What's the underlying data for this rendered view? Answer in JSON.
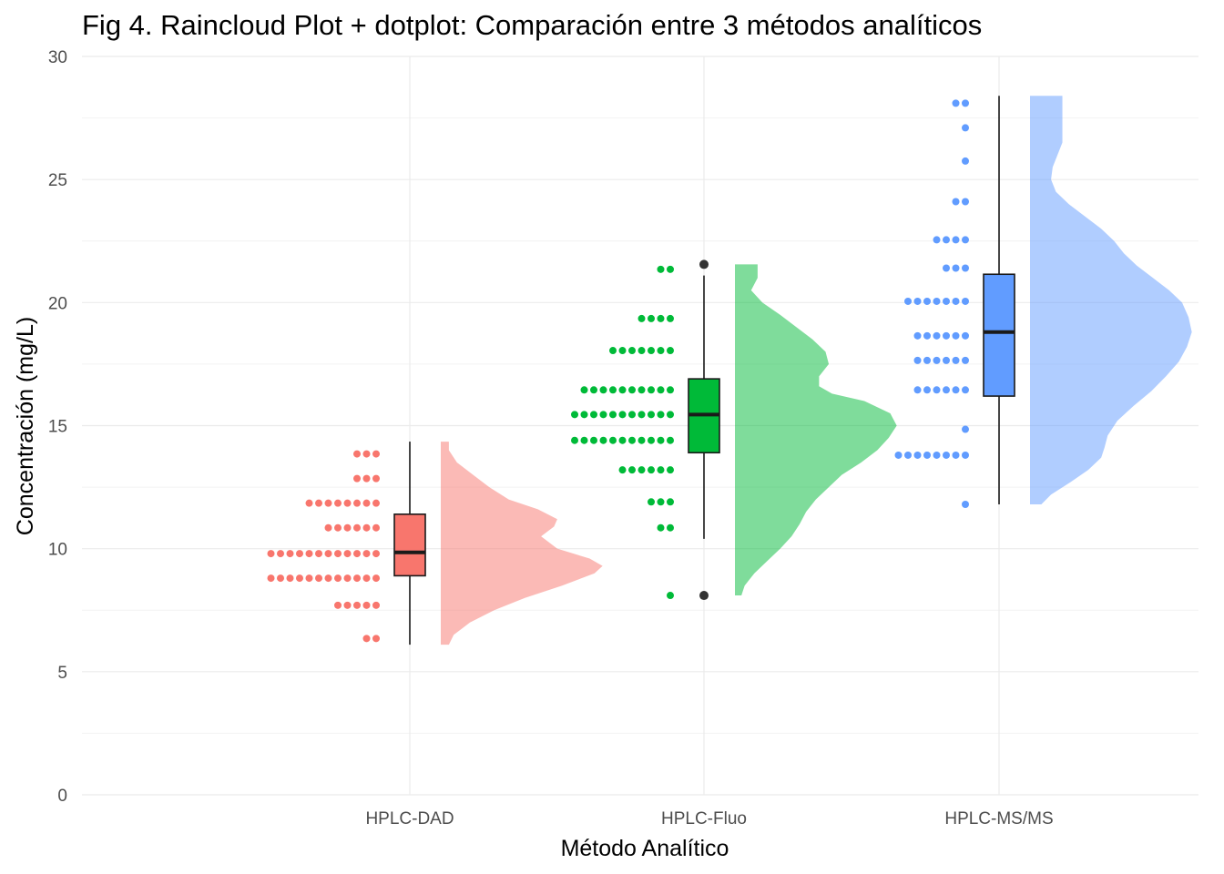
{
  "chart_data": {
    "type": "raincloud",
    "title": "Fig 4. Raincloud Plot + dotplot: Comparación entre 3 métodos analíticos",
    "xlabel": "Método Analítico",
    "ylabel": "Concentración (mg/L)",
    "ylim": [
      0,
      30
    ],
    "yticks": [
      "0",
      "5",
      "10",
      "15",
      "20",
      "25",
      "30"
    ],
    "grid": true,
    "legend": "none",
    "categories": [
      "HPLC-DAD",
      "HPLC-Fluo",
      "HPLC-MS/MS"
    ],
    "series": [
      {
        "category": "HPLC-DAD",
        "color": "#F8766D",
        "box": {
          "min": 6.1,
          "q1": 8.9,
          "median": 9.85,
          "q3": 11.4,
          "max": 14.35
        },
        "outliers": [],
        "dots": [
          {
            "y": 6.35,
            "count": 2
          },
          {
            "y": 7.7,
            "count": 5
          },
          {
            "y": 8.8,
            "count": 12
          },
          {
            "y": 9.8,
            "count": 12
          },
          {
            "y": 10.85,
            "count": 6
          },
          {
            "y": 11.85,
            "count": 8
          },
          {
            "y": 12.85,
            "count": 3
          },
          {
            "y": 13.85,
            "count": 3
          }
        ],
        "density": {
          "y": [
            6.1,
            6.5,
            7.0,
            7.5,
            8.0,
            8.5,
            9.0,
            9.3,
            9.6,
            10.0,
            10.5,
            10.9,
            11.2,
            11.6,
            12.0,
            12.5,
            13.0,
            13.5,
            14.0,
            14.35
          ],
          "d": [
            0.05,
            0.08,
            0.18,
            0.33,
            0.52,
            0.75,
            0.95,
            1.0,
            0.92,
            0.72,
            0.62,
            0.7,
            0.72,
            0.6,
            0.42,
            0.3,
            0.2,
            0.1,
            0.05,
            0.05
          ]
        }
      },
      {
        "category": "HPLC-Fluo",
        "color": "#00BA38",
        "box": {
          "min": 10.4,
          "q1": 13.9,
          "median": 15.45,
          "q3": 16.9,
          "max": 21.1
        },
        "outliers": [
          8.1,
          21.55
        ],
        "dots": [
          {
            "y": 8.1,
            "count": 1
          },
          {
            "y": 10.85,
            "count": 2
          },
          {
            "y": 11.9,
            "count": 3
          },
          {
            "y": 13.2,
            "count": 6
          },
          {
            "y": 14.4,
            "count": 11
          },
          {
            "y": 15.45,
            "count": 11
          },
          {
            "y": 16.45,
            "count": 10
          },
          {
            "y": 18.05,
            "count": 7
          },
          {
            "y": 19.35,
            "count": 4
          },
          {
            "y": 21.35,
            "count": 2
          }
        ],
        "density": {
          "y": [
            8.1,
            8.5,
            9.0,
            9.5,
            10.0,
            10.5,
            11.0,
            11.5,
            12.0,
            12.5,
            13.0,
            13.5,
            14.0,
            14.5,
            15.0,
            15.5,
            16.0,
            16.3,
            16.6,
            17.0,
            17.5,
            18.0,
            18.5,
            19.0,
            19.5,
            20.0,
            20.5,
            21.0,
            21.55
          ],
          "d": [
            0.04,
            0.06,
            0.12,
            0.2,
            0.28,
            0.35,
            0.4,
            0.44,
            0.5,
            0.58,
            0.66,
            0.78,
            0.88,
            0.95,
            1.0,
            0.96,
            0.8,
            0.6,
            0.52,
            0.52,
            0.58,
            0.56,
            0.48,
            0.38,
            0.28,
            0.17,
            0.1,
            0.14,
            0.14
          ]
        }
      },
      {
        "category": "HPLC-MS/MS",
        "color": "#619CFF",
        "box": {
          "min": 11.8,
          "q1": 16.2,
          "median": 18.8,
          "q3": 21.15,
          "max": 28.4
        },
        "outliers": [],
        "dots": [
          {
            "y": 11.8,
            "count": 1
          },
          {
            "y": 13.8,
            "count": 8
          },
          {
            "y": 14.85,
            "count": 1
          },
          {
            "y": 16.45,
            "count": 6
          },
          {
            "y": 17.65,
            "count": 6
          },
          {
            "y": 18.65,
            "count": 6
          },
          {
            "y": 20.05,
            "count": 7
          },
          {
            "y": 21.4,
            "count": 3
          },
          {
            "y": 22.55,
            "count": 4
          },
          {
            "y": 24.1,
            "count": 2
          },
          {
            "y": 25.75,
            "count": 1
          },
          {
            "y": 27.1,
            "count": 1
          },
          {
            "y": 28.1,
            "count": 2
          }
        ],
        "density": {
          "y": [
            11.8,
            12.2,
            12.7,
            13.2,
            13.7,
            14.1,
            14.6,
            15.2,
            15.8,
            16.4,
            17.0,
            17.6,
            18.2,
            18.8,
            19.4,
            20.0,
            20.5,
            21.0,
            21.5,
            22.0,
            22.5,
            23.0,
            23.5,
            24.0,
            24.5,
            25.0,
            25.5,
            26.0,
            26.5,
            27.0,
            27.5,
            28.0,
            28.4
          ],
          "d": [
            0.07,
            0.13,
            0.25,
            0.36,
            0.44,
            0.46,
            0.48,
            0.54,
            0.64,
            0.75,
            0.84,
            0.92,
            0.97,
            1.0,
            0.98,
            0.94,
            0.86,
            0.76,
            0.66,
            0.58,
            0.52,
            0.44,
            0.34,
            0.24,
            0.16,
            0.13,
            0.14,
            0.17,
            0.2,
            0.2,
            0.2,
            0.2,
            0.2
          ]
        }
      }
    ]
  }
}
